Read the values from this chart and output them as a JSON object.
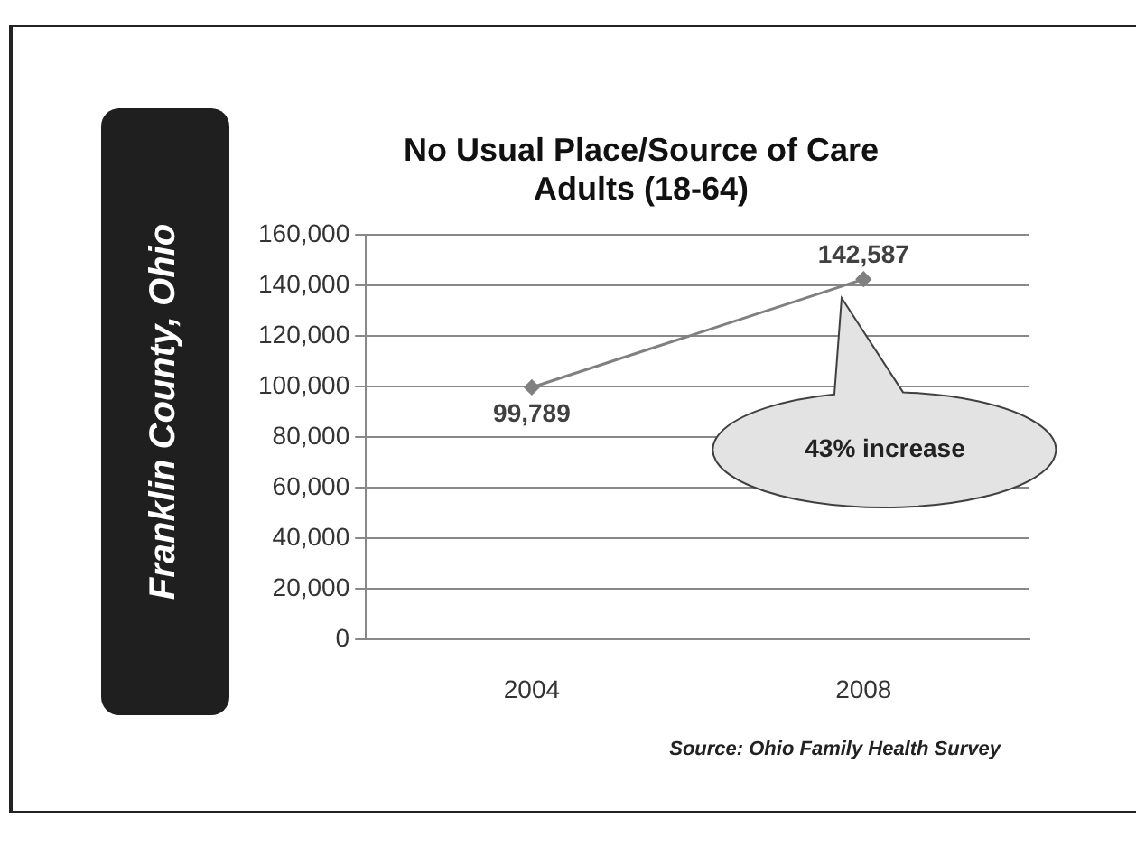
{
  "chart_data": {
    "type": "line",
    "title": "No Usual Place/Source of Care\nAdults (18-64)",
    "categories": [
      "2004",
      "2008"
    ],
    "series": [
      {
        "color": "#808080",
        "values": [
          99789,
          142587
        ],
        "value_labels": [
          "99,789",
          "142,587"
        ]
      }
    ],
    "ylim": [
      0,
      160000
    ],
    "yticks": [
      0,
      {
        "value": 20000,
        "label": "20,000"
      },
      {
        "value": 40000,
        "label": "40,000"
      },
      {
        "value": 60000,
        "label": "60,000"
      },
      {
        "value": 80000,
        "label": "80,000"
      },
      {
        "value": 100000,
        "label": "100,000"
      },
      {
        "value": 120000,
        "label": "120,000"
      },
      {
        "value": 140000,
        "label": "140,000"
      },
      {
        "value": 160000,
        "label": "160,000"
      }
    ],
    "grid": "y",
    "marker": "diamond",
    "annotations": [
      "Franklin County, Ohio",
      "43% increase",
      "Source: Ohio Family Health Survey"
    ]
  }
}
